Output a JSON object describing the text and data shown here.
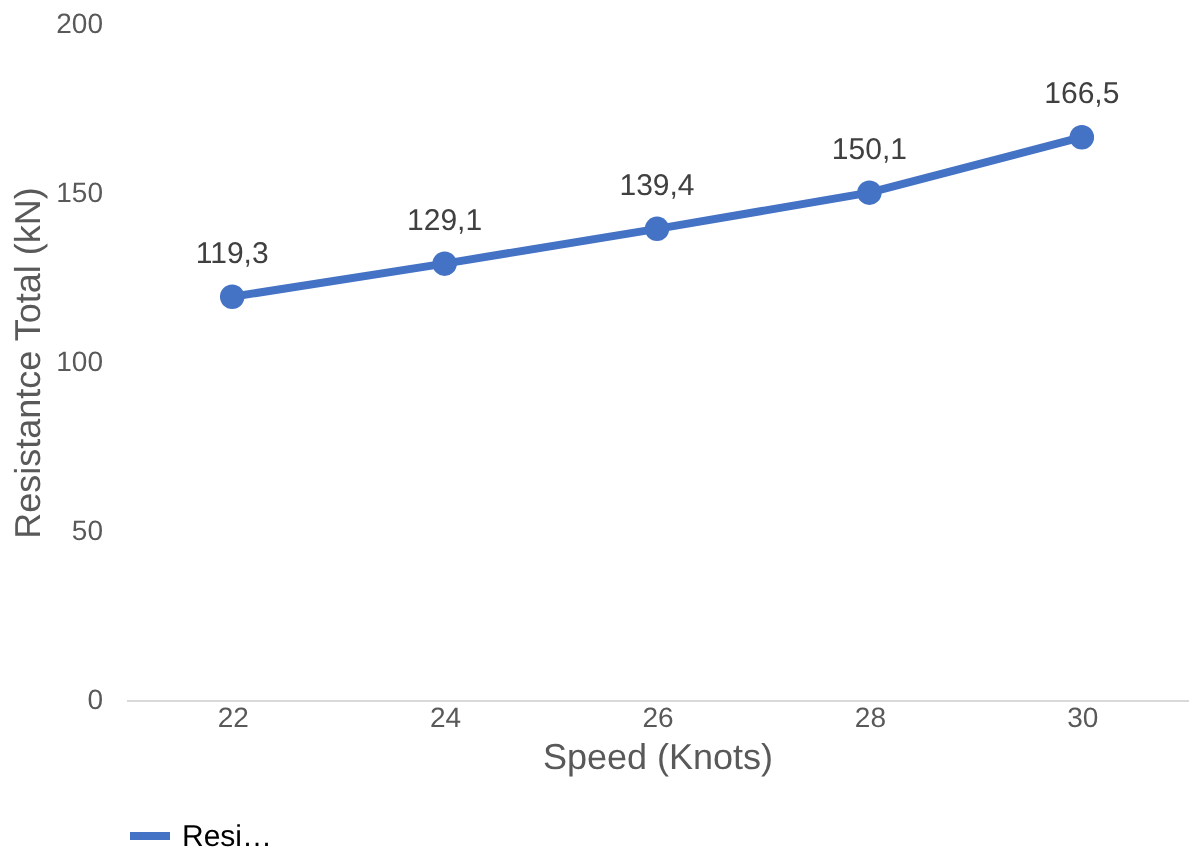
{
  "chart_data": {
    "type": "line",
    "xlabel": "Speed (Knots)",
    "ylabel": "Resistantce Total (kN)",
    "categories": [
      "22",
      "24",
      "26",
      "28",
      "30"
    ],
    "series": [
      {
        "name": "Resi…",
        "color": "#4472c4",
        "values": [
          119.3,
          129.1,
          139.4,
          150.1,
          166.5
        ],
        "value_labels": [
          "119,3",
          "129,1",
          "139,4",
          "150,1",
          "166,5"
        ]
      }
    ],
    "ylim": [
      0,
      200
    ],
    "yticks": [
      0,
      50,
      100,
      150,
      200
    ],
    "grid": false,
    "legend": "bottom",
    "marker": "circle",
    "line_style": "solid"
  }
}
